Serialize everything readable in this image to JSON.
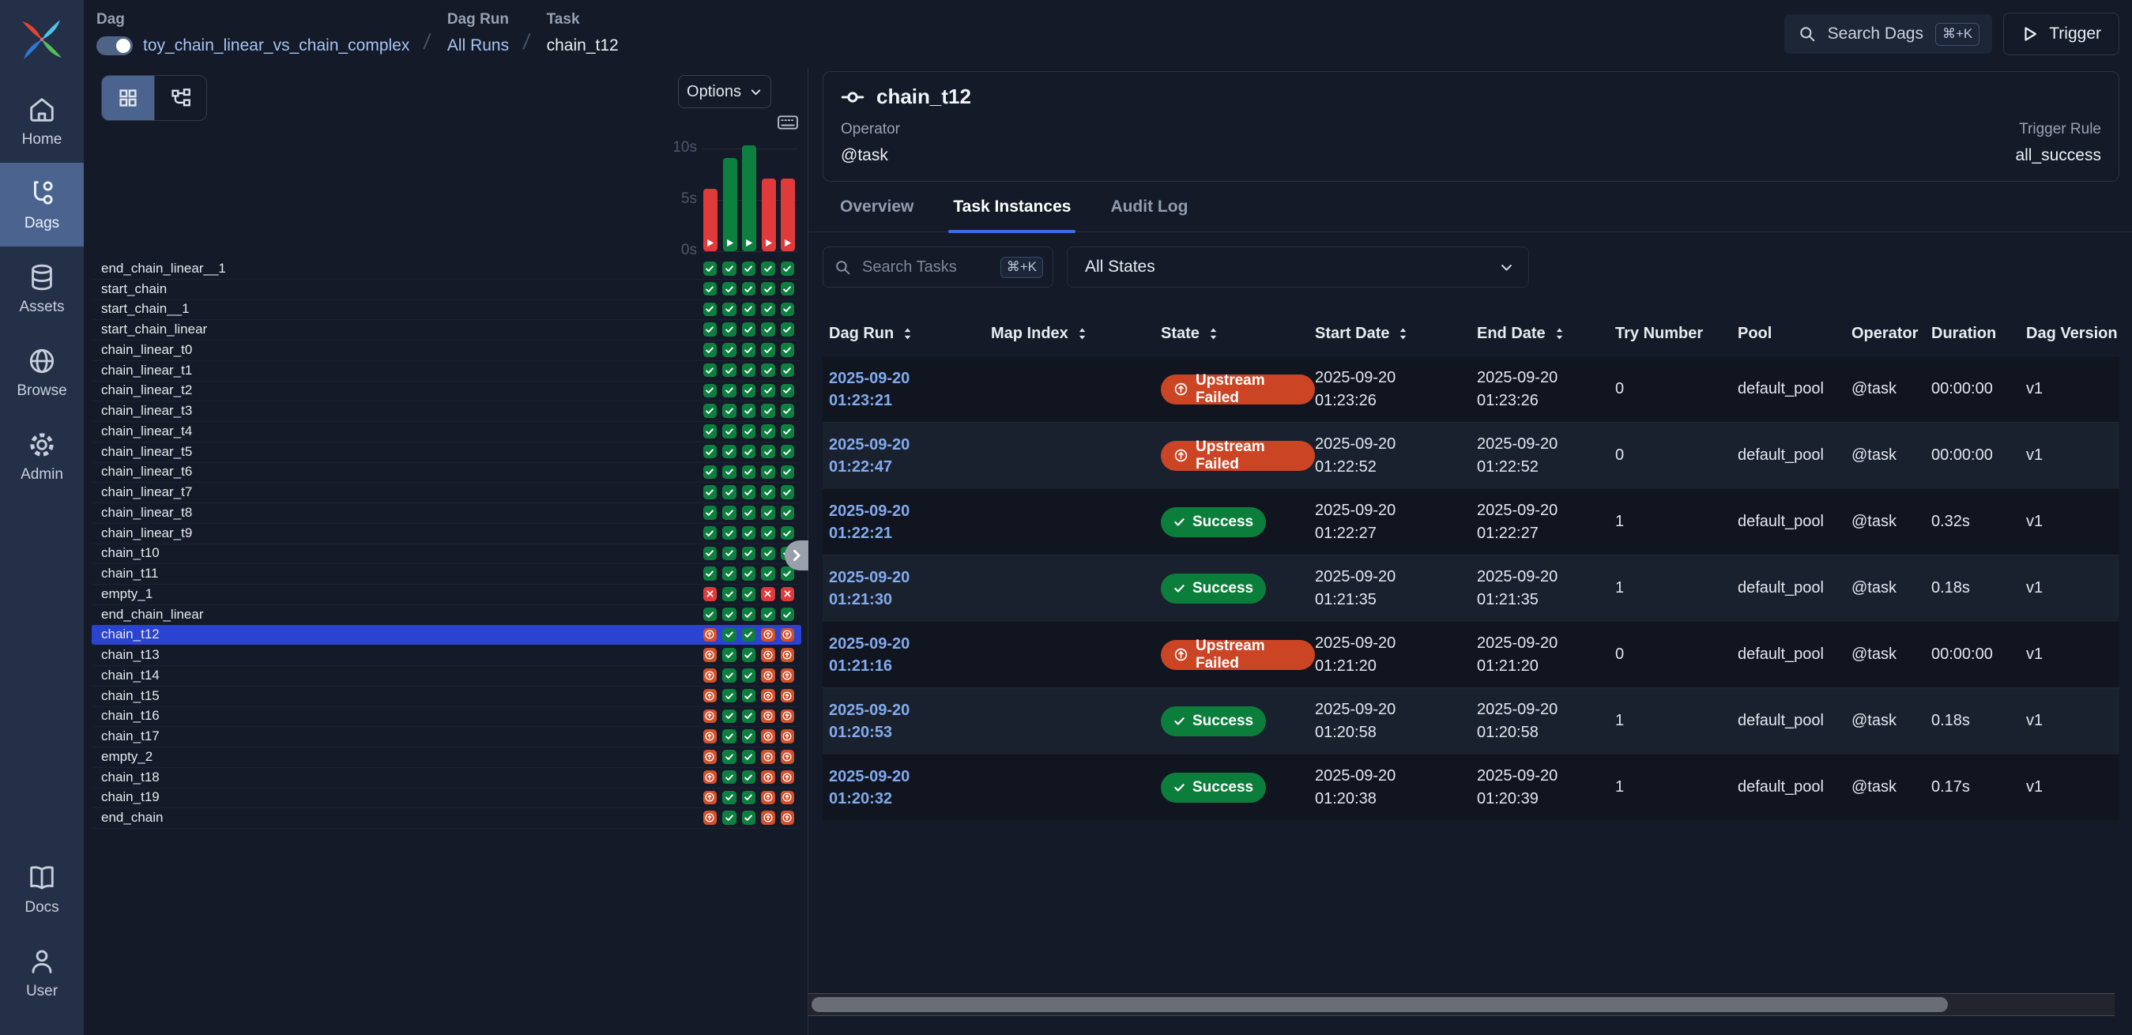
{
  "breadcrumb": {
    "dag_label": "Dag",
    "dag_name": "toy_chain_linear_vs_chain_complex",
    "dag_run_label": "Dag Run",
    "dag_run_value": "All Runs",
    "task_label": "Task",
    "task_value": "chain_t12"
  },
  "topbar": {
    "search_label": "Search Dags",
    "search_kbd": "⌘+K",
    "trigger_label": "Trigger"
  },
  "sidebar": {
    "items": [
      {
        "label": "Home",
        "icon": "home",
        "active": false
      },
      {
        "label": "Dags",
        "icon": "branch",
        "active": true
      },
      {
        "label": "Assets",
        "icon": "database",
        "active": false
      },
      {
        "label": "Browse",
        "icon": "globe",
        "active": false
      },
      {
        "label": "Admin",
        "icon": "gear",
        "active": false
      }
    ],
    "bottom_items": [
      {
        "label": "Docs",
        "icon": "book",
        "active": false
      },
      {
        "label": "User",
        "icon": "user",
        "active": false
      }
    ]
  },
  "grid_panel": {
    "options_label": "Options",
    "state_legend": {
      "s": "success",
      "f": "failed",
      "u": "upstream_failed"
    },
    "chart": {
      "type": "bar",
      "ylabel_ticks": [
        "10s",
        "5s",
        "0s"
      ],
      "ylim": [
        0,
        10
      ],
      "runs": [
        {
          "state": "f",
          "duration_s": 6.1
        },
        {
          "state": "s",
          "duration_s": 9.1
        },
        {
          "state": "s",
          "duration_s": 10.3
        },
        {
          "state": "f",
          "duration_s": 7.1
        },
        {
          "state": "f",
          "duration_s": 7.1
        }
      ]
    },
    "selected_task": "chain_t12",
    "tasks": [
      {
        "name": "end_chain_linear__1",
        "states": [
          "s",
          "s",
          "s",
          "s",
          "s"
        ]
      },
      {
        "name": "start_chain",
        "states": [
          "s",
          "s",
          "s",
          "s",
          "s"
        ]
      },
      {
        "name": "start_chain__1",
        "states": [
          "s",
          "s",
          "s",
          "s",
          "s"
        ]
      },
      {
        "name": "start_chain_linear",
        "states": [
          "s",
          "s",
          "s",
          "s",
          "s"
        ]
      },
      {
        "name": "chain_linear_t0",
        "states": [
          "s",
          "s",
          "s",
          "s",
          "s"
        ]
      },
      {
        "name": "chain_linear_t1",
        "states": [
          "s",
          "s",
          "s",
          "s",
          "s"
        ]
      },
      {
        "name": "chain_linear_t2",
        "states": [
          "s",
          "s",
          "s",
          "s",
          "s"
        ]
      },
      {
        "name": "chain_linear_t3",
        "states": [
          "s",
          "s",
          "s",
          "s",
          "s"
        ]
      },
      {
        "name": "chain_linear_t4",
        "states": [
          "s",
          "s",
          "s",
          "s",
          "s"
        ]
      },
      {
        "name": "chain_linear_t5",
        "states": [
          "s",
          "s",
          "s",
          "s",
          "s"
        ]
      },
      {
        "name": "chain_linear_t6",
        "states": [
          "s",
          "s",
          "s",
          "s",
          "s"
        ]
      },
      {
        "name": "chain_linear_t7",
        "states": [
          "s",
          "s",
          "s",
          "s",
          "s"
        ]
      },
      {
        "name": "chain_linear_t8",
        "states": [
          "s",
          "s",
          "s",
          "s",
          "s"
        ]
      },
      {
        "name": "chain_linear_t9",
        "states": [
          "s",
          "s",
          "s",
          "s",
          "s"
        ]
      },
      {
        "name": "chain_t10",
        "states": [
          "s",
          "s",
          "s",
          "s",
          "s"
        ]
      },
      {
        "name": "chain_t11",
        "states": [
          "s",
          "s",
          "s",
          "s",
          "s"
        ]
      },
      {
        "name": "empty_1",
        "states": [
          "f",
          "s",
          "s",
          "f",
          "f"
        ]
      },
      {
        "name": "end_chain_linear",
        "states": [
          "s",
          "s",
          "s",
          "s",
          "s"
        ]
      },
      {
        "name": "chain_t12",
        "states": [
          "u",
          "s",
          "s",
          "u",
          "u"
        ]
      },
      {
        "name": "chain_t13",
        "states": [
          "u",
          "s",
          "s",
          "u",
          "u"
        ]
      },
      {
        "name": "chain_t14",
        "states": [
          "u",
          "s",
          "s",
          "u",
          "u"
        ]
      },
      {
        "name": "chain_t15",
        "states": [
          "u",
          "s",
          "s",
          "u",
          "u"
        ]
      },
      {
        "name": "chain_t16",
        "states": [
          "u",
          "s",
          "s",
          "u",
          "u"
        ]
      },
      {
        "name": "chain_t17",
        "states": [
          "u",
          "s",
          "s",
          "u",
          "u"
        ]
      },
      {
        "name": "empty_2",
        "states": [
          "u",
          "s",
          "s",
          "u",
          "u"
        ]
      },
      {
        "name": "chain_t18",
        "states": [
          "u",
          "s",
          "s",
          "u",
          "u"
        ]
      },
      {
        "name": "chain_t19",
        "states": [
          "u",
          "s",
          "s",
          "u",
          "u"
        ]
      },
      {
        "name": "end_chain",
        "states": [
          "u",
          "s",
          "s",
          "u",
          "u"
        ]
      }
    ]
  },
  "detail": {
    "title": "chain_t12",
    "operator_label": "Operator",
    "operator_value": "@task",
    "trigger_rule_label": "Trigger Rule",
    "trigger_rule_value": "all_success",
    "tabs": [
      {
        "label": "Overview",
        "active": false
      },
      {
        "label": "Task Instances",
        "active": true
      },
      {
        "label": "Audit Log",
        "active": false
      }
    ],
    "search_placeholder": "Search Tasks",
    "search_kbd": "⌘+K",
    "state_filter": "All States",
    "table": {
      "columns": [
        {
          "label": "Dag Run",
          "sortable": true
        },
        {
          "label": "Map Index",
          "sortable": true
        },
        {
          "label": "State",
          "sortable": true
        },
        {
          "label": "Start Date",
          "sortable": true
        },
        {
          "label": "End Date",
          "sortable": true
        },
        {
          "label": "Try Number",
          "sortable": false
        },
        {
          "label": "Pool",
          "sortable": false
        },
        {
          "label": "Operator",
          "sortable": false
        },
        {
          "label": "Duration",
          "sortable": false
        },
        {
          "label": "Dag Version",
          "sortable": false
        }
      ],
      "rows": [
        {
          "run_date": "2025-09-20",
          "run_time": "01:23:21",
          "map_index": "",
          "state": "Upstream Failed",
          "start_date": "2025-09-20",
          "start_time": "01:23:26",
          "end_date": "2025-09-20",
          "end_time": "01:23:26",
          "try_number": "0",
          "pool": "default_pool",
          "operator": "@task",
          "duration": "00:00:00",
          "dag_version": "v1"
        },
        {
          "run_date": "2025-09-20",
          "run_time": "01:22:47",
          "map_index": "",
          "state": "Upstream Failed",
          "start_date": "2025-09-20",
          "start_time": "01:22:52",
          "end_date": "2025-09-20",
          "end_time": "01:22:52",
          "try_number": "0",
          "pool": "default_pool",
          "operator": "@task",
          "duration": "00:00:00",
          "dag_version": "v1"
        },
        {
          "run_date": "2025-09-20",
          "run_time": "01:22:21",
          "map_index": "",
          "state": "Success",
          "start_date": "2025-09-20",
          "start_time": "01:22:27",
          "end_date": "2025-09-20",
          "end_time": "01:22:27",
          "try_number": "1",
          "pool": "default_pool",
          "operator": "@task",
          "duration": "0.32s",
          "dag_version": "v1"
        },
        {
          "run_date": "2025-09-20",
          "run_time": "01:21:30",
          "map_index": "",
          "state": "Success",
          "start_date": "2025-09-20",
          "start_time": "01:21:35",
          "end_date": "2025-09-20",
          "end_time": "01:21:35",
          "try_number": "1",
          "pool": "default_pool",
          "operator": "@task",
          "duration": "0.18s",
          "dag_version": "v1"
        },
        {
          "run_date": "2025-09-20",
          "run_time": "01:21:16",
          "map_index": "",
          "state": "Upstream Failed",
          "start_date": "2025-09-20",
          "start_time": "01:21:20",
          "end_date": "2025-09-20",
          "end_time": "01:21:20",
          "try_number": "0",
          "pool": "default_pool",
          "operator": "@task",
          "duration": "00:00:00",
          "dag_version": "v1"
        },
        {
          "run_date": "2025-09-20",
          "run_time": "01:20:53",
          "map_index": "",
          "state": "Success",
          "start_date": "2025-09-20",
          "start_time": "01:20:58",
          "end_date": "2025-09-20",
          "end_time": "01:20:58",
          "try_number": "1",
          "pool": "default_pool",
          "operator": "@task",
          "duration": "0.18s",
          "dag_version": "v1"
        },
        {
          "run_date": "2025-09-20",
          "run_time": "01:20:32",
          "map_index": "",
          "state": "Success",
          "start_date": "2025-09-20",
          "start_time": "01:20:38",
          "end_date": "2025-09-20",
          "end_time": "01:20:39",
          "try_number": "1",
          "pool": "default_pool",
          "operator": "@task",
          "duration": "0.17s",
          "dag_version": "v1"
        }
      ]
    }
  }
}
